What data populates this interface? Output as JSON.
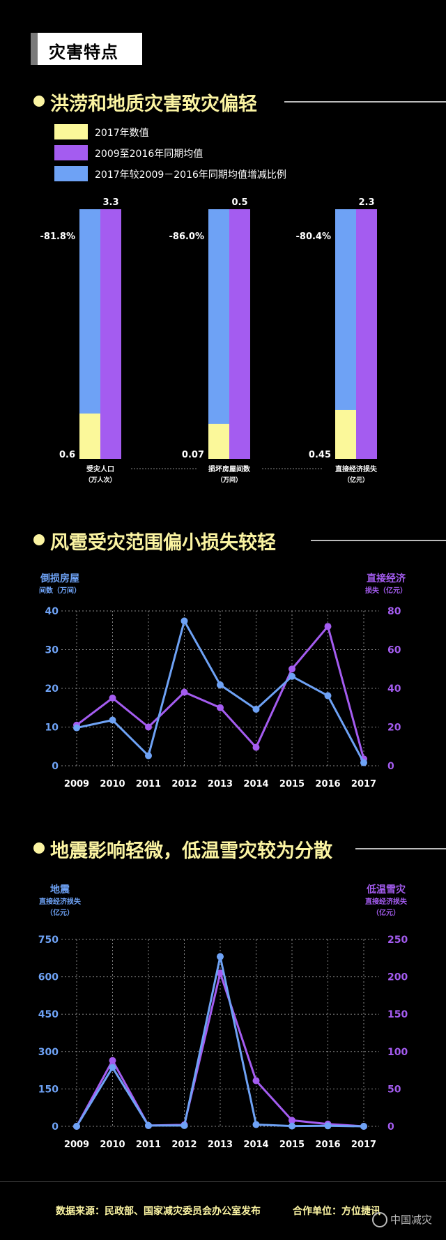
{
  "header": {
    "tag": "灾害特点"
  },
  "sections": [
    {
      "title": "洪涝和地质灾害致灾偏轻"
    },
    {
      "title": "风雹受灾范围偏小损失较轻"
    },
    {
      "title": "地震影响轻微，低温雪灾较为分散"
    }
  ],
  "legend": [
    {
      "label": "2017年数值",
      "color": "#fbf89a"
    },
    {
      "label": "2009至2016年同期均值",
      "color": "#a45cf0"
    },
    {
      "label": "2017年较2009－2016年同期均值增减比例",
      "color": "#6ea2f5"
    }
  ],
  "footer": {
    "source": "数据来源：民政部、国家减灾委员会办公室发布",
    "partner": "合作单位：方位捷讯",
    "watermark": "中国减灾"
  },
  "chart_data": [
    {
      "type": "bar",
      "groups": [
        {
          "label": "受灾人口",
          "unit": "（万人次）",
          "value_2017": 0.6,
          "avg_2009_2016": 3.3,
          "change": "-81.8%"
        },
        {
          "label": "损坏房屋间数",
          "unit": "（万间）",
          "value_2017": 0.07,
          "avg_2009_2016": 0.5,
          "change": "-86.0%"
        },
        {
          "label": "直接经济损失",
          "unit": "（亿元）",
          "value_2017": 0.45,
          "avg_2009_2016": 2.3,
          "change": "-80.4%"
        }
      ],
      "series_colors": {
        "value_2017": "#fbf89a",
        "avg": "#a45cf0",
        "change": "#6ea2f5"
      }
    },
    {
      "type": "line",
      "x": [
        "2009",
        "2010",
        "2011",
        "2012",
        "2013",
        "2014",
        "2015",
        "2016",
        "2017"
      ],
      "left_axis": {
        "title": "倒损房屋",
        "unit": "间数（万间）",
        "ylim": [
          0,
          40
        ],
        "ticks": [
          "0",
          "10",
          "20",
          "30",
          "40"
        ],
        "color": "#6ea2f5"
      },
      "right_axis": {
        "title": "直接经济",
        "unit": "损失（亿元）",
        "ylim": [
          0,
          80
        ],
        "ticks": [
          "0",
          "20",
          "40",
          "60",
          "80"
        ],
        "color": "#a45cf0"
      },
      "series": [
        {
          "axis": "left",
          "color": "#6ea2f5",
          "values": [
            9.8,
            11.8,
            2.6,
            37.4,
            20.9,
            14.6,
            23.1,
            18.1,
            0.8
          ]
        },
        {
          "axis": "right",
          "color": "#a45cf0",
          "values": [
            21,
            35,
            20,
            38,
            30,
            9.5,
            50,
            72,
            3.5
          ]
        }
      ]
    },
    {
      "type": "line",
      "x": [
        "2009",
        "2010",
        "2011",
        "2012",
        "2013",
        "2014",
        "2015",
        "2016",
        "2017"
      ],
      "left_axis": {
        "title": "地震",
        "unit": "直接经济损失",
        "unit2": "（亿元）",
        "ylim": [
          0,
          750
        ],
        "ticks": [
          "0",
          "150",
          "300",
          "450",
          "600",
          "750"
        ],
        "color": "#6ea2f5"
      },
      "right_axis": {
        "title": "低温雪灾",
        "unit": "直接经济损失",
        "unit2": "（亿元）",
        "ylim": [
          0,
          250
        ],
        "ticks": [
          "0",
          "50",
          "100",
          "150",
          "200",
          "250"
        ],
        "color": "#a45cf0"
      },
      "series": [
        {
          "axis": "left",
          "color": "#6ea2f5",
          "values": [
            0,
            236,
            3,
            3,
            681,
            7,
            1,
            2,
            0
          ]
        },
        {
          "axis": "right",
          "color": "#a45cf0",
          "values": [
            0,
            88,
            1,
            2,
            205,
            61,
            8,
            3,
            0
          ]
        }
      ]
    }
  ]
}
